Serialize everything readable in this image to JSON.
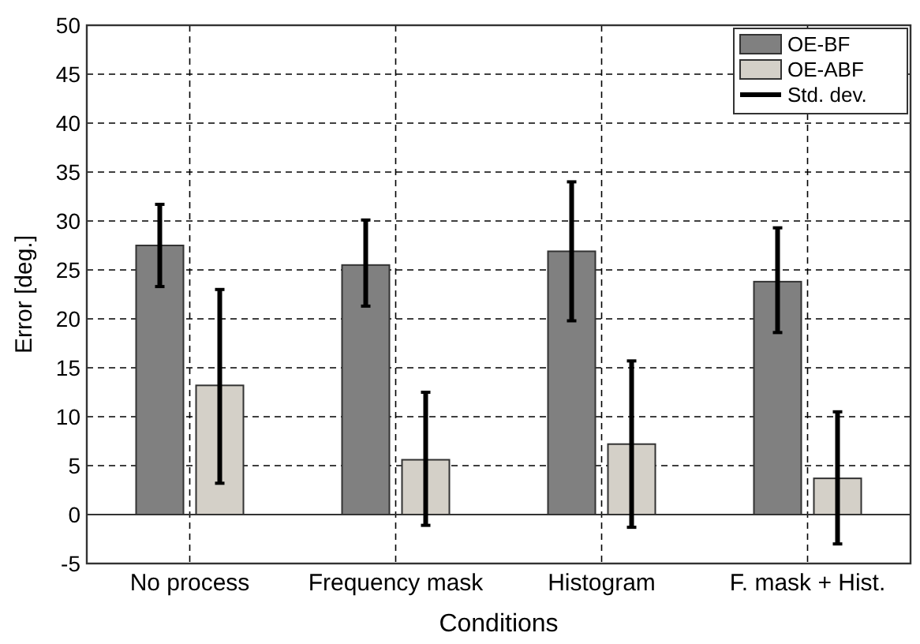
{
  "chart_data": {
    "type": "bar",
    "xlabel": "Conditions",
    "ylabel": "Error [deg.]",
    "categories": [
      "No process",
      "Frequency mask",
      "Histogram",
      "F. mask + Hist."
    ],
    "series": [
      {
        "name": "OE-BF",
        "color": "#808080",
        "values": [
          27.5,
          25.5,
          26.9,
          23.8
        ],
        "errors": [
          [
            23.3,
            31.7
          ],
          [
            21.3,
            30.1
          ],
          [
            19.8,
            34.0
          ],
          [
            18.6,
            29.3
          ]
        ]
      },
      {
        "name": "OE-ABF",
        "color": "#d4d0c8",
        "values": [
          13.2,
          5.6,
          7.2,
          3.7
        ],
        "errors": [
          [
            3.2,
            23.0
          ],
          [
            -1.1,
            12.5
          ],
          [
            -1.3,
            15.7
          ],
          [
            -3.0,
            10.5
          ]
        ]
      }
    ],
    "ylim": [
      -5,
      50
    ],
    "yticks": [
      -5,
      0,
      5,
      10,
      15,
      20,
      25,
      30,
      35,
      40,
      45,
      50
    ],
    "grid": true,
    "legend": "top right",
    "annotations": [
      "Std. dev."
    ]
  }
}
